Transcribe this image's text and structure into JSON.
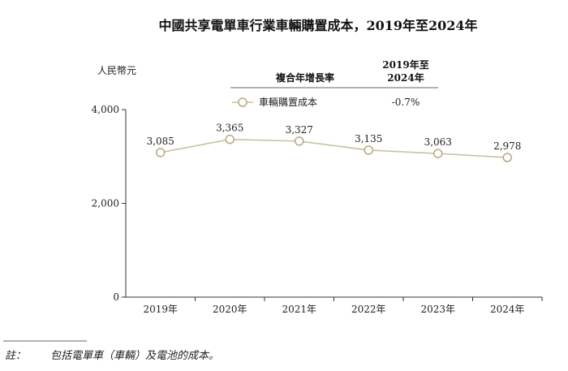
{
  "chart_data": {
    "type": "line",
    "title": "中國共享電單車行業車輛購置成本，2019年至2024年",
    "ylabel": "人民幣元",
    "xlabel": "",
    "categories": [
      "2019年",
      "2020年",
      "2021年",
      "2022年",
      "2023年",
      "2024年"
    ],
    "series": [
      {
        "name": "車輛購置成本",
        "values": [
          3085,
          3365,
          3327,
          3135,
          3063,
          2978
        ],
        "value_labels": [
          "3,085",
          "3,365",
          "3,327",
          "3,135",
          "3,063",
          "2,978"
        ],
        "cagr": "-0.7%",
        "color": "#c9c0a2"
      }
    ],
    "ylim": [
      0,
      4000
    ],
    "yticks": [
      0,
      2000,
      4000
    ],
    "ytick_labels": [
      "0",
      "2,000",
      "4,000"
    ],
    "grid": false,
    "legend": {
      "placement": "top-right",
      "cagr_header": "複合年增長率",
      "period_header_line1": "2019年至",
      "period_header_line2": "2024年"
    },
    "note": {
      "label": "註：",
      "text": "包括電單車（車輛）及電池的成本。"
    }
  }
}
